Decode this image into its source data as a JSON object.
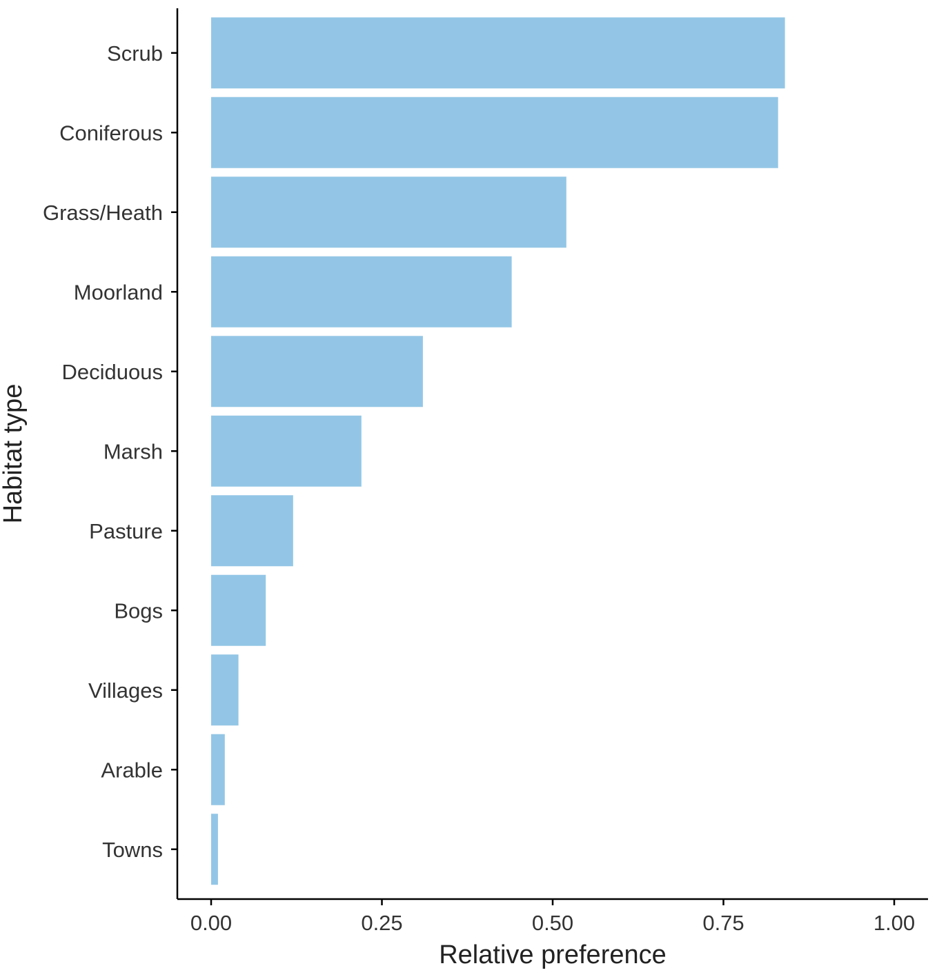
{
  "chart_data": {
    "type": "bar",
    "orientation": "horizontal",
    "categories": [
      "Scrub",
      "Coniferous",
      "Grass/Heath",
      "Moorland",
      "Deciduous",
      "Marsh",
      "Pasture",
      "Bogs",
      "Villages",
      "Arable",
      "Towns"
    ],
    "values": [
      0.84,
      0.83,
      0.52,
      0.44,
      0.31,
      0.22,
      0.12,
      0.08,
      0.04,
      0.02,
      0.01
    ],
    "xlabel": "Relative preference",
    "ylabel": "Habitat type",
    "xlim": [
      0,
      1
    ],
    "x_ticks": [
      "0.00",
      "0.25",
      "0.50",
      "0.75",
      "1.00"
    ],
    "x_tick_values": [
      0,
      0.25,
      0.5,
      0.75,
      1.0
    ],
    "bar_color": "#93c6e6",
    "grid": false,
    "legend": "none"
  }
}
